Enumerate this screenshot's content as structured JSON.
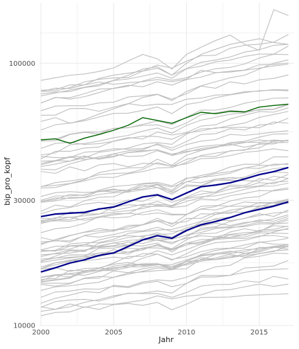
{
  "chart_data": {
    "type": "line",
    "xlabel": "Jahr",
    "ylabel": "bip_pro_kopf",
    "y_scale": "log",
    "xlim": [
      1999.9,
      2017.4
    ],
    "ylim": [
      10000,
      170000
    ],
    "x_ticks": [
      2000,
      2005,
      2010,
      2015
    ],
    "x_tick_labels": [
      "2000",
      "2005",
      "2010",
      "2015"
    ],
    "y_ticks": [
      10000,
      30000,
      100000
    ],
    "y_tick_labels": [
      "10000",
      "30000",
      "100000"
    ],
    "grid": true,
    "legend": "none",
    "x": [
      2000,
      2001,
      2002,
      2003,
      2004,
      2005,
      2006,
      2007,
      2008,
      2009,
      2010,
      2011,
      2012,
      2013,
      2014,
      2015,
      2016,
      2017
    ],
    "colors": {
      "background_series": "#bebebe",
      "highlight_upper": "#006400",
      "highlight_mid": "#00008b",
      "highlight_low": "#00008b",
      "grid": "#ebebeb"
    },
    "highlighted_series": [
      {
        "role": "upper",
        "values": [
          51000,
          51500,
          49500,
          51800,
          53500,
          55500,
          58000,
          62000,
          60500,
          59000,
          62000,
          65000,
          64200,
          65500,
          65200,
          68000,
          69000,
          69800
        ]
      },
      {
        "role": "mid",
        "values": [
          26000,
          26600,
          26800,
          27000,
          27800,
          28300,
          29600,
          30900,
          31500,
          30200,
          32000,
          33800,
          34300,
          35000,
          36200,
          37600,
          38600,
          40000
        ]
      },
      {
        "role": "low",
        "values": [
          16000,
          16600,
          17300,
          17800,
          18500,
          18900,
          20000,
          21200,
          22000,
          21500,
          23000,
          24200,
          24900,
          25800,
          26900,
          27700,
          28500,
          29600
        ]
      }
    ],
    "background_series_summary": {
      "count": 70,
      "min_2000": 11000,
      "max_2000": 82000,
      "growth_2000_2017": 1.38
    }
  }
}
